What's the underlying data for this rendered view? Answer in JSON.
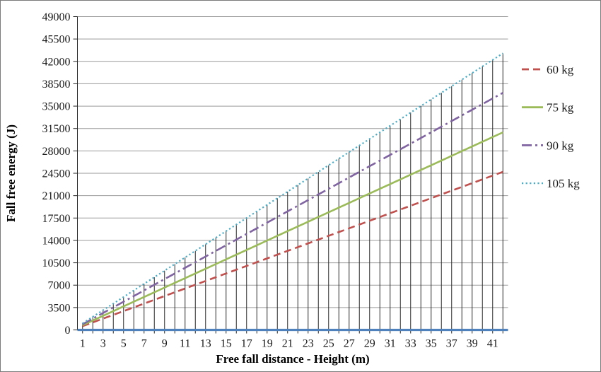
{
  "figure": {
    "background": "#FFFFFF",
    "border_color": "#7A7A7A"
  },
  "chart_data": {
    "type": "line",
    "title": "",
    "xlabel": "Free fall distance - Height (m)",
    "ylabel": "Fall free energy (J)",
    "x": [
      1,
      2,
      3,
      4,
      5,
      6,
      7,
      8,
      9,
      10,
      11,
      12,
      13,
      14,
      15,
      16,
      17,
      18,
      19,
      20,
      21,
      22,
      23,
      24,
      25,
      26,
      27,
      28,
      29,
      30,
      31,
      32,
      33,
      34,
      35,
      36,
      37,
      38,
      39,
      40,
      41,
      42
    ],
    "series": [
      {
        "name": "60 kg",
        "color": "#C0504D",
        "line_style": "dashed",
        "values": [
          589,
          1177,
          1766,
          2354,
          2943,
          3532,
          4120,
          4709,
          5297,
          5886,
          6475,
          7063,
          7652,
          8240,
          8829,
          9418,
          10006,
          10595,
          11183,
          11772,
          12361,
          12949,
          13538,
          14126,
          14715,
          15304,
          15892,
          16481,
          17069,
          17658,
          18247,
          18835,
          19424,
          20012,
          20601,
          21190,
          21778,
          22367,
          22955,
          23544,
          24133,
          24721
        ]
      },
      {
        "name": "75 kg",
        "color": "#9BBB59",
        "line_style": "solid",
        "values": [
          736,
          1472,
          2207,
          2943,
          3679,
          4415,
          5150,
          5886,
          6622,
          7358,
          8093,
          8829,
          9565,
          10301,
          11036,
          11772,
          12508,
          13244,
          13979,
          14715,
          15451,
          16187,
          16922,
          17658,
          18394,
          19130,
          19865,
          20601,
          21337,
          22073,
          22808,
          23544,
          24280,
          25016,
          25751,
          26487,
          27223,
          27959,
          28694,
          29430,
          30166,
          30902
        ]
      },
      {
        "name": "90 kg",
        "color": "#8064A2",
        "line_style": "dash-dot",
        "values": [
          883,
          1766,
          2649,
          3532,
          4415,
          5297,
          6180,
          7063,
          7946,
          8829,
          9712,
          10595,
          11478,
          12361,
          13244,
          14126,
          15009,
          15892,
          16775,
          17658,
          18541,
          19424,
          20307,
          21190,
          22073,
          22955,
          23838,
          24721,
          25604,
          26487,
          27370,
          28253,
          29136,
          30019,
          30902,
          31784,
          32667,
          33550,
          34433,
          35316,
          36199,
          37082
        ]
      },
      {
        "name": "105 kg",
        "color": "#4BACC6",
        "line_style": "dotted",
        "values": [
          1030,
          2060,
          3090,
          4120,
          5150,
          6180,
          7210,
          8240,
          9270,
          10301,
          11331,
          12361,
          13391,
          14421,
          15451,
          16481,
          17511,
          18541,
          19571,
          20601,
          21631,
          22661,
          23691,
          24721,
          25751,
          26781,
          27811,
          28841,
          29871,
          30902,
          31932,
          32962,
          33992,
          35022,
          36052,
          37082,
          38112,
          39142,
          40172,
          41202,
          42232,
          43262
        ]
      }
    ],
    "ylim": [
      0,
      49000
    ],
    "ytick_step": 3500,
    "yticklabels": [
      "0",
      "3500",
      "7000",
      "10500",
      "14000",
      "17500",
      "21000",
      "24500",
      "28000",
      "31500",
      "35000",
      "38500",
      "42000",
      "45500",
      "49000"
    ],
    "xticklabels": [
      "1",
      "3",
      "5",
      "7",
      "9",
      "11",
      "13",
      "15",
      "17",
      "19",
      "21",
      "23",
      "25",
      "27",
      "29",
      "31",
      "33",
      "35",
      "37",
      "39",
      "41"
    ],
    "grid": "horizontal",
    "gridline_color": "#9A9A9A",
    "drop_lines": true,
    "drop_line_color": "#2B2B2B",
    "baseline_color": "#4F81BD",
    "axis_color": "#262626",
    "legend_position": "right"
  }
}
